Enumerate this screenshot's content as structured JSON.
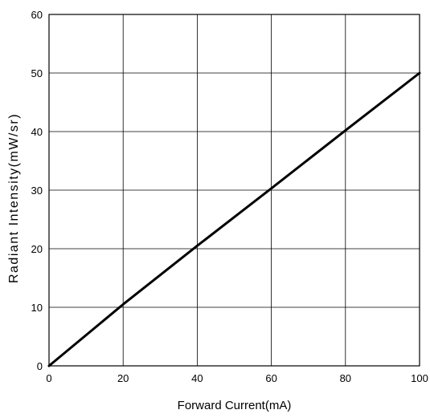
{
  "chart_data": {
    "type": "line",
    "title": "",
    "xlabel": "Forward Current(mA)",
    "ylabel": "Radiant Intensity(mW/sr)",
    "xlim": [
      0,
      100
    ],
    "ylim": [
      0,
      60
    ],
    "xticks": [
      0,
      20,
      40,
      60,
      80,
      100
    ],
    "yticks": [
      0,
      10,
      20,
      30,
      40,
      50,
      60
    ],
    "xtick_labels": [
      "0",
      "20",
      "40",
      "60",
      "80",
      "100"
    ],
    "ytick_labels": [
      "0",
      "10",
      "20",
      "30",
      "40",
      "50",
      "60"
    ],
    "grid": true,
    "series": [
      {
        "x": [
          0,
          20,
          40,
          60,
          80,
          100
        ],
        "y": [
          0,
          10.5,
          20.5,
          30.3,
          40.2,
          50
        ]
      }
    ],
    "colors": {
      "line": "#000000",
      "grid": "#000000",
      "background": "#ffffff"
    }
  }
}
